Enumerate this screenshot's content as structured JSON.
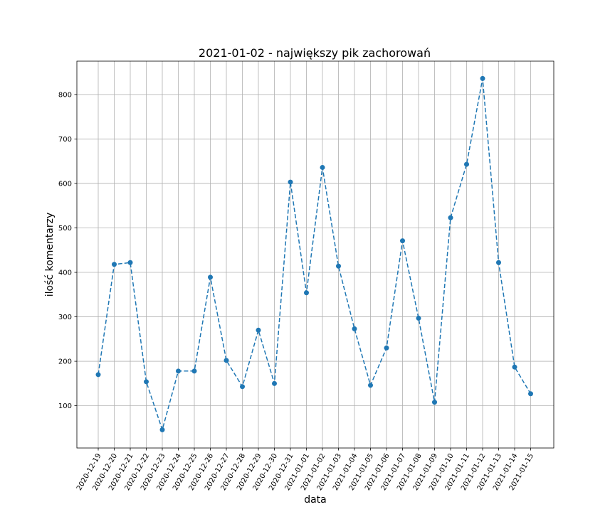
{
  "chart_data": {
    "type": "line",
    "title": "2021-01-02 - największy pik zachorowań",
    "xlabel": "data",
    "ylabel": "ilość komentarzy",
    "ylim": [
      5,
      875
    ],
    "yticks": [
      100,
      200,
      300,
      400,
      500,
      600,
      700,
      800
    ],
    "grid": true,
    "line_style": "dashed",
    "marker": "circle",
    "color": "#1f77b4",
    "categories": [
      "2020-12-19",
      "2020-12-20",
      "2020-12-21",
      "2020-12-22",
      "2020-12-23",
      "2020-12-24",
      "2020-12-25",
      "2020-12-26",
      "2020-12-27",
      "2020-12-28",
      "2020-12-29",
      "2020-12-30",
      "2020-12-31",
      "2021-01-01",
      "2021-01-02",
      "2021-01-03",
      "2021-01-04",
      "2021-01-05",
      "2021-01-06",
      "2021-01-07",
      "2021-01-08",
      "2021-01-09",
      "2021-01-10",
      "2021-01-11",
      "2021-01-12",
      "2021-01-13",
      "2021-01-14",
      "2021-01-15"
    ],
    "values": [
      170,
      418,
      422,
      154,
      46,
      178,
      178,
      389,
      202,
      143,
      270,
      150,
      603,
      354,
      636,
      414,
      273,
      146,
      230,
      471,
      297,
      108,
      523,
      643,
      836,
      422,
      187,
      127
    ]
  }
}
